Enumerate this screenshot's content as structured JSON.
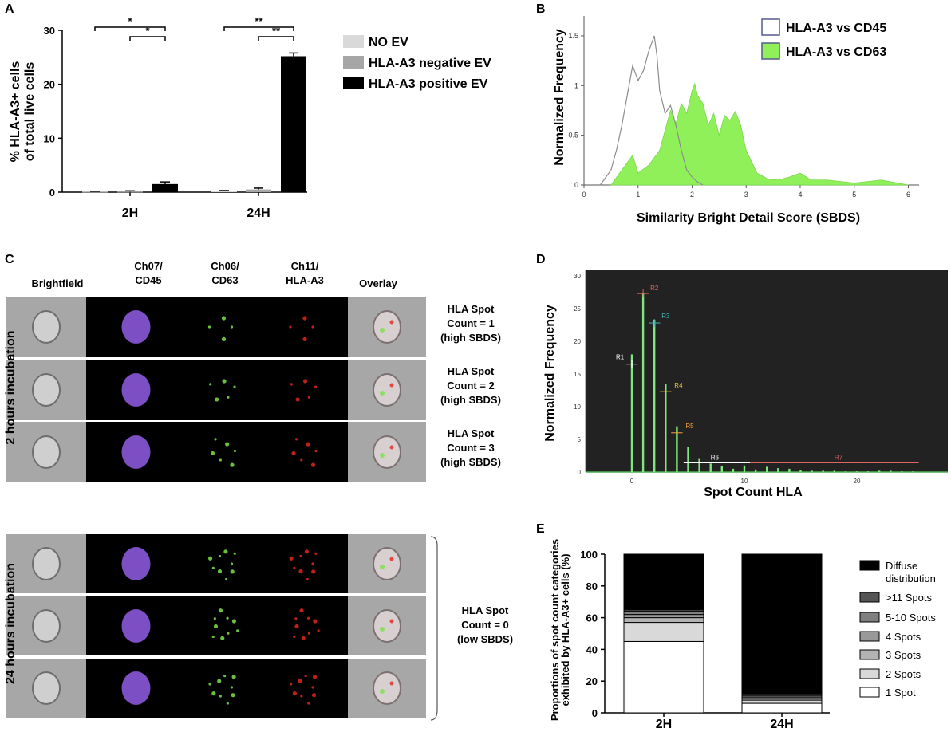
{
  "panels": {
    "A": {
      "label": "A",
      "ylabel_line1": "% HLA-A3+ cells",
      "ylabel_line2": "of total live cells",
      "categories": [
        "2H",
        "24H"
      ],
      "series": [
        {
          "name": "NO EV",
          "color": "#d9d9d9",
          "values": [
            0.1,
            0.2
          ],
          "errors": [
            0.05,
            0.1
          ]
        },
        {
          "name": "HLA-A3 negative EV",
          "color": "#a6a6a6",
          "values": [
            0.1,
            0.5
          ],
          "errors": [
            0.15,
            0.25
          ]
        },
        {
          "name": "HLA-A3 positive EV",
          "color": "#000000",
          "values": [
            1.5,
            25.2
          ],
          "errors": [
            0.4,
            0.6
          ]
        }
      ],
      "ylim": [
        0,
        30
      ],
      "yticks": [
        "0",
        "10",
        "20",
        "30"
      ],
      "significance": [
        "*",
        "*",
        "**",
        "**"
      ]
    },
    "B": {
      "label": "B",
      "ylabel": "Normalized Frequency",
      "xlabel": "Similarity Bright Detail Score (SBDS)",
      "xticks": [
        "0",
        "1",
        "2",
        "3",
        "4",
        "5",
        "6"
      ],
      "yticks": [
        "0",
        "0.5",
        "1",
        "1.5"
      ],
      "legend": [
        "HLA-A3 vs CD45",
        "HLA-A3 vs CD63"
      ],
      "legend_colors": [
        "#ffffff",
        "#8ff05a"
      ],
      "outline_color": "#888888"
    },
    "C": {
      "label": "C",
      "headers": [
        "Brightfield",
        "Ch07/\nCD45",
        "Ch06/\nCD63",
        "Ch11/\nHLA-A3",
        "Overlay"
      ],
      "header_line1": [
        "Brightfield",
        "Ch07/",
        "Ch06/",
        "Ch11/",
        "Overlay"
      ],
      "header_line2": [
        "",
        "CD45",
        "CD63",
        "HLA-A3",
        ""
      ],
      "group1_label": "2 hours incubation",
      "group2_label": "24 hours incubation",
      "group1_notes": [
        [
          "HLA Spot",
          "Count = 1",
          "(high SBDS)"
        ],
        [
          "HLA Spot",
          "Count = 2",
          "(high SBDS)"
        ],
        [
          "HLA Spot",
          "Count = 3",
          "(high SBDS)"
        ]
      ],
      "group2_note": [
        "HLA Spot",
        "Count = 0",
        "(low SBDS)"
      ]
    },
    "D": {
      "label": "D",
      "ylabel": "Normalized Frequency",
      "xlabel": "Spot Count HLA",
      "yticks": [
        "0",
        "5",
        "10",
        "15",
        "20",
        "25",
        "30"
      ],
      "xticks": [
        "0",
        "10",
        "20"
      ],
      "regions": [
        "R1",
        "R2",
        "R3",
        "R4",
        "R5",
        "R6",
        "R7"
      ],
      "region_colors": [
        "#ffffff",
        "#e06666",
        "#46b5b5",
        "#f1c232",
        "#f6a23c",
        "#ffffff",
        "#e06666"
      ],
      "bar_color": "#7ee87e",
      "background": "#222222"
    },
    "E": {
      "label": "E",
      "ylabel_line1": "Proportions of spot count categories",
      "ylabel_line2": "exhibited by HLA-A3+ cells (%)",
      "yticks": [
        "0",
        "20",
        "40",
        "60",
        "80",
        "100"
      ],
      "ylim": [
        0,
        100
      ]
    }
  },
  "chart_data": [
    {
      "type": "bar",
      "title": "",
      "categories": [
        "2H",
        "24H"
      ],
      "ylabel": "% HLA-A3+ cells of total live cells",
      "ylim": [
        0,
        30
      ],
      "series": [
        {
          "name": "NO EV",
          "values": [
            0.1,
            0.2
          ]
        },
        {
          "name": "HLA-A3 negative EV",
          "values": [
            0.1,
            0.5
          ]
        },
        {
          "name": "HLA-A3 positive EV",
          "values": [
            1.5,
            25.2
          ]
        }
      ]
    },
    {
      "type": "area",
      "xlabel": "Similarity Bright Detail Score (SBDS)",
      "ylabel": "Normalized Frequency",
      "xlim": [
        0,
        6.2
      ],
      "ylim": [
        0,
        1.7
      ],
      "series": [
        {
          "name": "HLA-A3 vs CD45",
          "x": [
            0.3,
            0.5,
            0.6,
            0.7,
            0.8,
            0.9,
            1.0,
            1.1,
            1.2,
            1.3,
            1.35,
            1.4,
            1.5,
            1.6,
            1.7,
            1.8,
            1.9,
            2.0,
            2.1,
            2.2
          ],
          "values": [
            0,
            0.15,
            0.35,
            0.6,
            0.9,
            1.2,
            1.05,
            1.15,
            1.35,
            1.5,
            1.3,
            0.95,
            0.72,
            0.8,
            0.6,
            0.35,
            0.15,
            0.08,
            0.03,
            0
          ]
        },
        {
          "name": "HLA-A3 vs CD63",
          "x": [
            0.5,
            0.7,
            0.9,
            1.0,
            1.2,
            1.4,
            1.5,
            1.6,
            1.7,
            1.8,
            1.9,
            2.0,
            2.05,
            2.1,
            2.2,
            2.3,
            2.4,
            2.5,
            2.6,
            2.7,
            2.8,
            2.9,
            3.0,
            3.2,
            3.4,
            3.6,
            3.8,
            4.0,
            4.2,
            4.5,
            5.0,
            5.5,
            6.0
          ],
          "values": [
            0,
            0.15,
            0.3,
            0.12,
            0.2,
            0.35,
            0.55,
            0.75,
            0.62,
            0.82,
            0.72,
            0.95,
            1.02,
            0.9,
            0.82,
            0.6,
            0.72,
            0.5,
            0.7,
            0.65,
            0.74,
            0.6,
            0.35,
            0.12,
            0.06,
            0.05,
            0.08,
            0.12,
            0.05,
            0.05,
            0.02,
            0.05,
            0.0
          ]
        }
      ]
    },
    {
      "type": "bar",
      "xlabel": "Spot Count HLA",
      "ylabel": "Normalized Frequency",
      "ylim": [
        0,
        30
      ],
      "x": [
        0,
        1,
        2,
        3,
        4,
        5,
        6,
        7,
        8,
        9,
        10,
        11,
        12,
        13,
        14,
        15,
        16,
        17,
        18,
        19,
        20,
        21,
        22,
        23,
        24,
        25
      ],
      "values": [
        18,
        27.3,
        23.3,
        13.5,
        7,
        3.8,
        2,
        1.3,
        0.9,
        0.5,
        1,
        0.4,
        0.8,
        0.6,
        0.5,
        0.3,
        0.2,
        0.2,
        0.2,
        0.1,
        0.1,
        0.1,
        0.2,
        0.2,
        0.1,
        0.1
      ]
    },
    {
      "type": "bar",
      "stacked": true,
      "categories": [
        "2H",
        "24H"
      ],
      "ylabel": "Proportions of spot count categories exhibited by HLA-A3+ cells (%)",
      "ylim": [
        0,
        100
      ],
      "series": [
        {
          "name": "1 Spot",
          "color": "#ffffff",
          "values": [
            45,
            6
          ]
        },
        {
          "name": "2 Spots",
          "color": "#d9d9d9",
          "values": [
            12,
            2
          ]
        },
        {
          "name": "3 Spots",
          "color": "#b3b3b3",
          "values": [
            3,
            1
          ]
        },
        {
          "name": "4 Spots",
          "color": "#999999",
          "values": [
            2,
            1
          ]
        },
        {
          "name": "5-10 Spots",
          "color": "#7f7f7f",
          "values": [
            2,
            1
          ]
        },
        {
          "name": ">11 Spots",
          "color": "#555555",
          "values": [
            1,
            1
          ]
        },
        {
          "name": "Diffuse\ndistribution",
          "color": "#000000",
          "values": [
            35,
            88
          ]
        }
      ],
      "legend_line1": [
        "1 Spot",
        "2 Spots",
        "3 Spots",
        "4 Spots",
        "5-10 Spots",
        ">11 Spots",
        "Diffuse"
      ],
      "legend_line2": [
        "",
        "",
        "",
        "",
        "",
        "",
        "distribution"
      ]
    }
  ]
}
